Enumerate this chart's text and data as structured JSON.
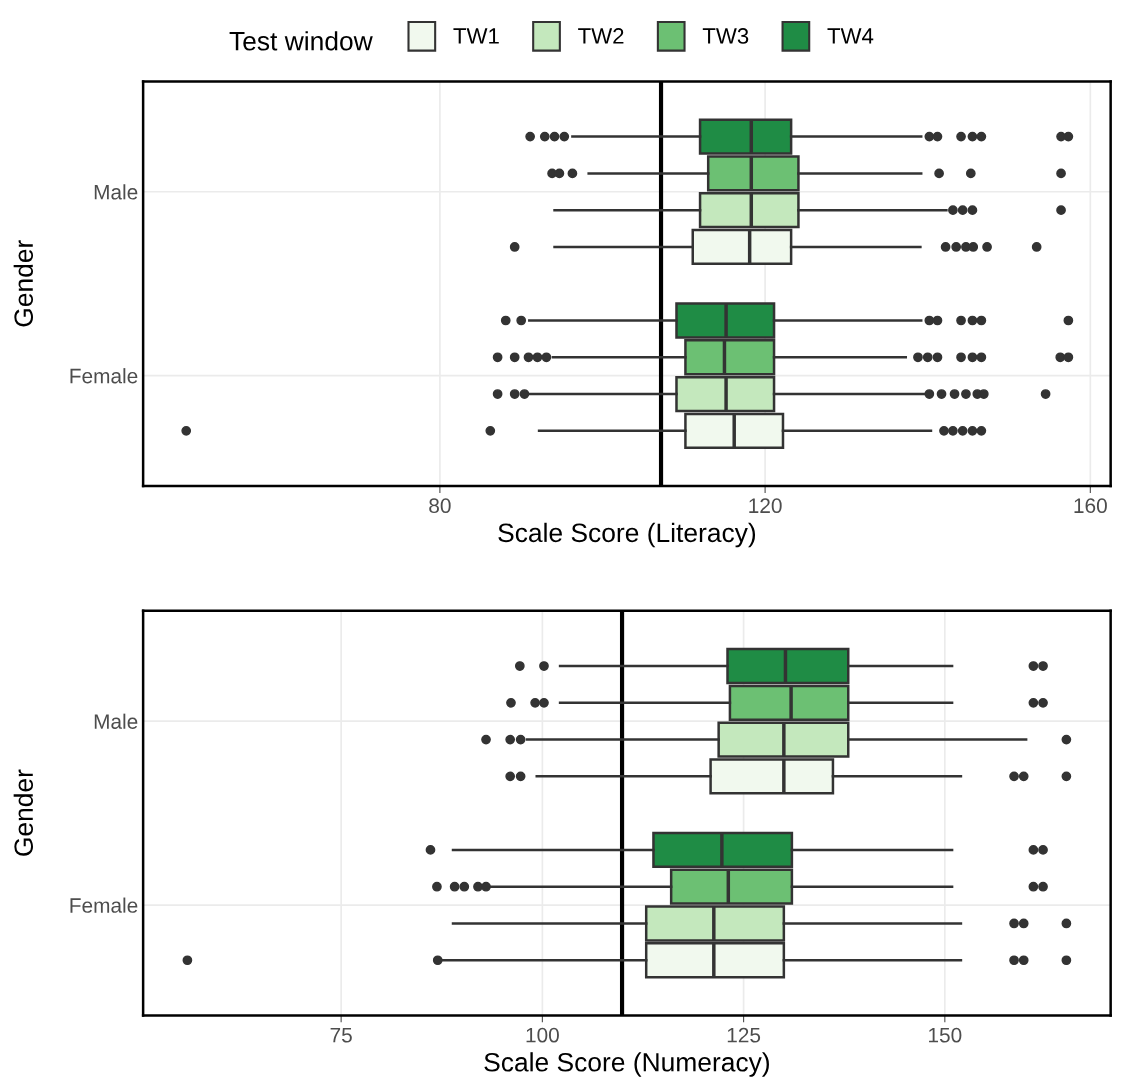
{
  "chart_data": [
    {
      "type": "box",
      "orientation": "horizontal",
      "xlabel": "Scale Score (Literacy)",
      "ylabel": "Gender",
      "legend_title": "Test window",
      "legend": "top",
      "grid": true,
      "categories": [
        "Male",
        "Female"
      ],
      "xlim": [
        43.5,
        162.5
      ],
      "xticks": [
        80,
        120,
        160
      ],
      "ref_lines": [
        {
          "axis": "x",
          "value": 107.2,
          "color": "#000000"
        }
      ],
      "series": [
        {
          "name": "TW1",
          "color": "#f1f9ee",
          "boxes": [
            {
              "low": 94.1,
              "q1": 111.1,
              "median": 118.1,
              "q3": 123.2,
              "high": 139.1,
              "outliers": [
                89.2,
                142.2,
                143.5,
                144.7,
                145.6,
                147.3,
                153.4
              ]
            },
            {
              "low": 92.2,
              "q1": 110.2,
              "median": 116.2,
              "q3": 122.2,
              "high": 140.4,
              "outliers": [
                48.8,
                86.2,
                142.0,
                143.1,
                144.3,
                145.5,
                146.6
              ]
            }
          ]
        },
        {
          "name": "TW2",
          "color": "#c4e8bd",
          "boxes": [
            {
              "low": 94.1,
              "q1": 112.0,
              "median": 118.3,
              "q3": 124.1,
              "high": 142.3,
              "outliers": [
                143.1,
                144.3,
                145.5,
                156.4
              ]
            },
            {
              "low": 90.9,
              "q1": 109.1,
              "median": 115.2,
              "q3": 121.1,
              "high": 139.6,
              "outliers": [
                87.1,
                89.2,
                90.4,
                140.2,
                141.7,
                143.3,
                144.7,
                146.1,
                146.9,
                154.5
              ]
            }
          ]
        },
        {
          "name": "TW3",
          "color": "#6cc073",
          "boxes": [
            {
              "low": 98.3,
              "q1": 113.0,
              "median": 118.3,
              "q3": 124.1,
              "high": 139.2,
              "outliers": [
                93.8,
                94.7,
                96.3,
                141.4,
                145.3,
                156.4
              ]
            },
            {
              "low": 93.9,
              "q1": 110.2,
              "median": 115.0,
              "q3": 121.1,
              "high": 137.3,
              "outliers": [
                87.1,
                89.2,
                90.9,
                92.0,
                93.1,
                138.8,
                140.0,
                141.2,
                144.1,
                145.5,
                146.6,
                156.3,
                157.3
              ]
            }
          ]
        },
        {
          "name": "TW4",
          "color": "#1f8c45",
          "boxes": [
            {
              "low": 96.3,
              "q1": 112.0,
              "median": 118.3,
              "q3": 123.2,
              "high": 139.2,
              "outliers": [
                91.1,
                92.9,
                94.1,
                95.3,
                140.2,
                141.2,
                144.1,
                145.5,
                146.6,
                156.4,
                157.3
              ]
            },
            {
              "low": 91.0,
              "q1": 109.1,
              "median": 115.2,
              "q3": 121.1,
              "high": 139.2,
              "outliers": [
                88.1,
                90.0,
                140.2,
                141.2,
                144.1,
                145.5,
                146.6,
                157.3
              ]
            }
          ]
        }
      ]
    },
    {
      "type": "box",
      "orientation": "horizontal",
      "xlabel": "Scale Score (Numeracy)",
      "ylabel": "Gender",
      "grid": true,
      "categories": [
        "Male",
        "Female"
      ],
      "xlim": [
        50.4,
        170.6
      ],
      "xticks": [
        75,
        100,
        125,
        150
      ],
      "ref_lines": [
        {
          "axis": "x",
          "value": 109.9,
          "color": "#000000"
        }
      ],
      "series": [
        {
          "color": "#f1f9ee",
          "boxes": [
            {
              "low": 99.3,
              "q1": 120.9,
              "median": 130.0,
              "q3": 136.1,
              "high": 152.0,
              "outliers": [
                96.0,
                97.3,
                158.6,
                159.8,
                165.1
              ]
            },
            {
              "low": 87.5,
              "q1": 112.9,
              "median": 121.3,
              "q3": 130.0,
              "high": 152.0,
              "outliers": [
                55.9,
                87.0,
                158.6,
                159.8,
                165.1
              ]
            }
          ]
        },
        {
          "color": "#c4e8bd",
          "boxes": [
            {
              "low": 98.1,
              "q1": 121.9,
              "median": 130.0,
              "q3": 138.0,
              "high": 160.1,
              "outliers": [
                93.0,
                96.0,
                97.3,
                165.1
              ]
            },
            {
              "low": 88.9,
              "q1": 112.9,
              "median": 121.3,
              "q3": 130.0,
              "high": 152.0,
              "outliers": [
                158.6,
                159.8,
                165.1
              ]
            }
          ]
        },
        {
          "color": "#6cc073",
          "boxes": [
            {
              "low": 102.2,
              "q1": 123.3,
              "median": 130.9,
              "q3": 138.0,
              "high": 150.9,
              "outliers": [
                96.1,
                99.1,
                100.2,
                161.0,
                162.2
              ]
            },
            {
              "low": 93.5,
              "q1": 116.0,
              "median": 123.1,
              "q3": 131.0,
              "high": 150.9,
              "outliers": [
                86.9,
                89.1,
                90.3,
                92.0,
                93.0,
                161.0,
                162.2
              ]
            }
          ]
        },
        {
          "color": "#1f8c45",
          "boxes": [
            {
              "low": 102.2,
              "q1": 123.0,
              "median": 130.2,
              "q3": 138.0,
              "high": 150.9,
              "outliers": [
                97.2,
                100.2,
                161.0,
                162.2
              ]
            },
            {
              "low": 88.9,
              "q1": 113.8,
              "median": 122.3,
              "q3": 131.0,
              "high": 150.9,
              "outliers": [
                86.1,
                161.0,
                162.2
              ]
            }
          ]
        }
      ]
    }
  ]
}
